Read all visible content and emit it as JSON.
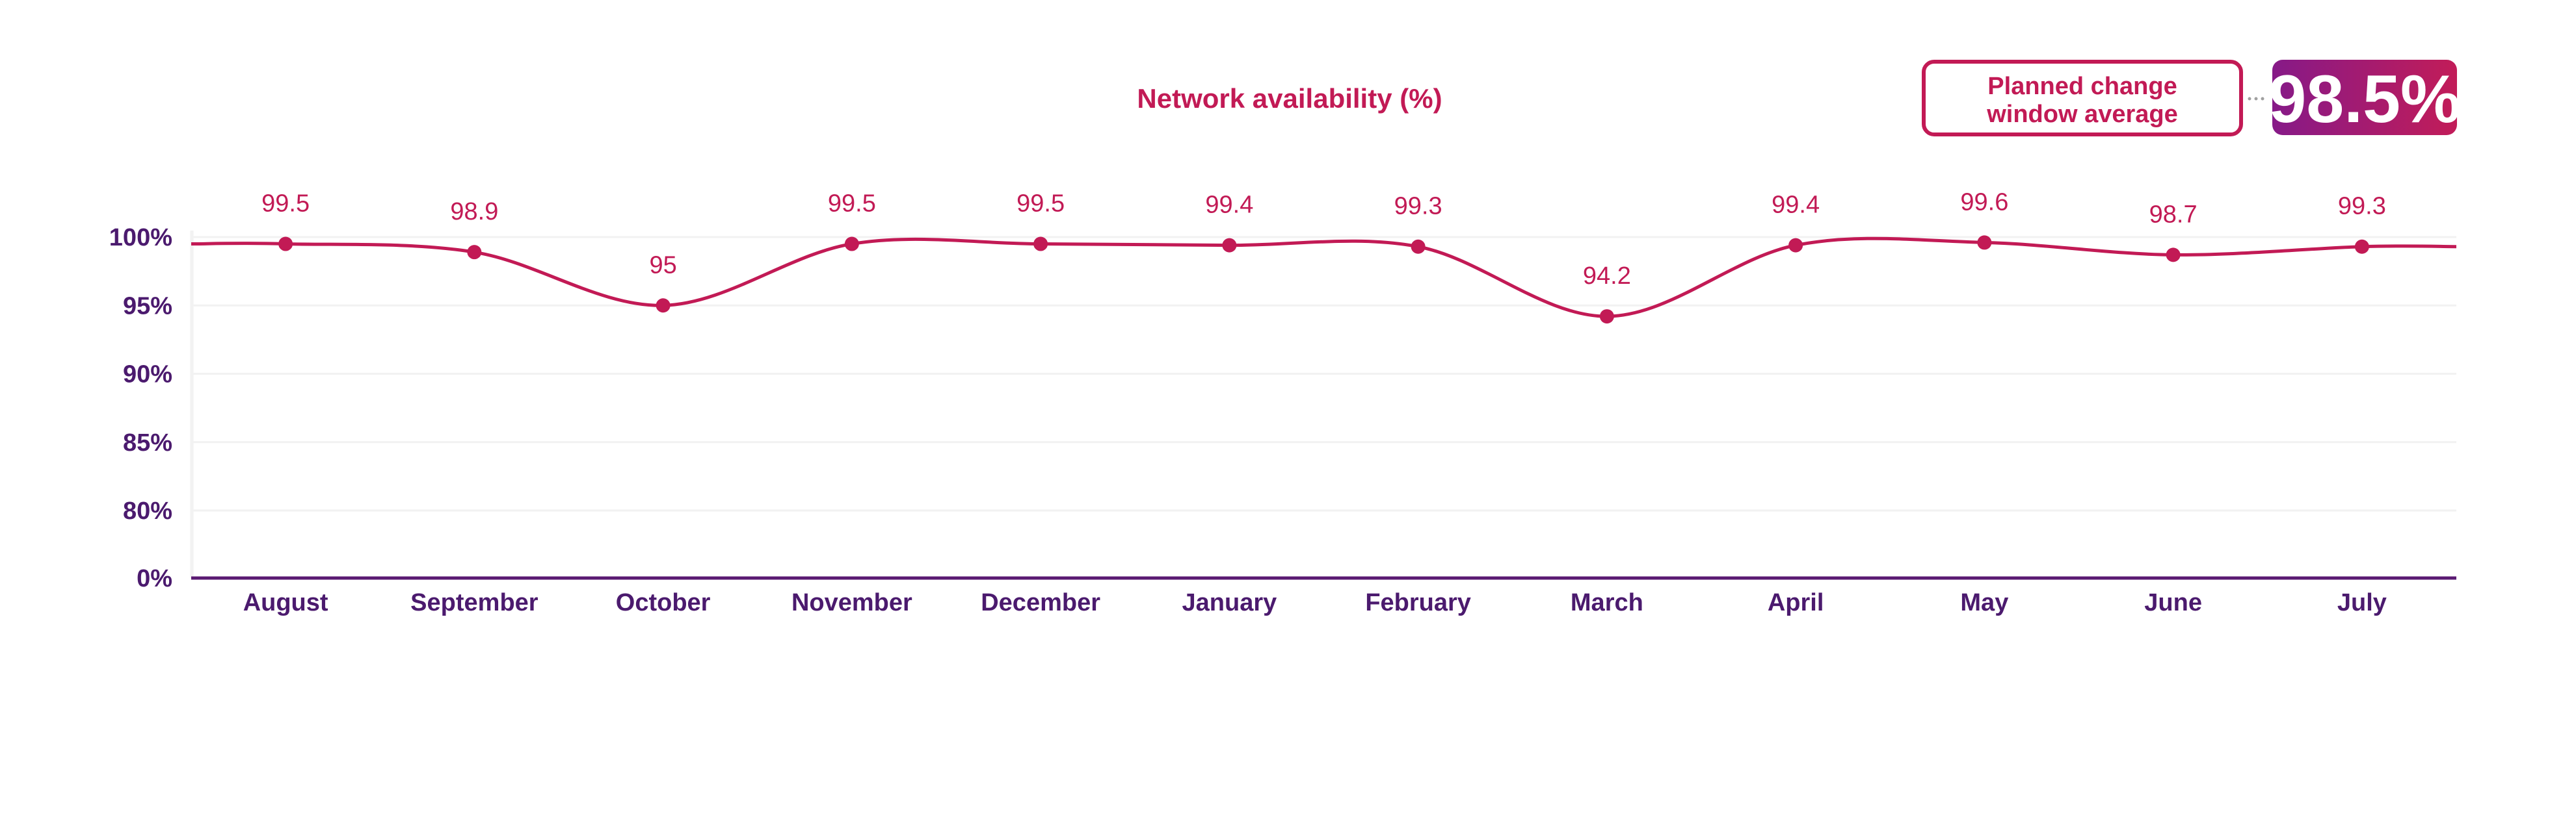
{
  "chart_data": {
    "type": "line",
    "title": "Network availability (%)",
    "categories": [
      "August",
      "September",
      "October",
      "November",
      "December",
      "January",
      "February",
      "March",
      "April",
      "May",
      "June",
      "July"
    ],
    "series": [
      {
        "name": "Network availability",
        "values": [
          99.5,
          98.9,
          95,
          99.5,
          99.5,
          99.4,
          99.3,
          94.2,
          99.4,
          99.6,
          98.7,
          99.3
        ]
      }
    ],
    "data_labels": [
      "99.5",
      "98.9",
      "95",
      "99.5",
      "99.5",
      "99.4",
      "99.3",
      "94.2",
      "99.4",
      "99.6",
      "98.7",
      "99.3"
    ],
    "y_ticks": [
      {
        "value": 0,
        "label": "0%"
      },
      {
        "value": 80,
        "label": "80%"
      },
      {
        "value": 85,
        "label": "85%"
      },
      {
        "value": 90,
        "label": "90%"
      },
      {
        "value": 95,
        "label": "95%"
      },
      {
        "value": 100,
        "label": "100%"
      }
    ],
    "ylim": [
      80,
      100
    ],
    "y_axis_break": "0% baseline below 80%",
    "grid": true,
    "xlabel": "",
    "ylabel": ""
  },
  "summary": {
    "label_line1": "Planned change",
    "label_line2": "window average",
    "value": "98.5%"
  },
  "colors": {
    "line": "#c21a55",
    "axis_text": "#4b1a6e",
    "badge_start": "#861a88",
    "badge_end": "#c21c58",
    "grid": "#f2f2f2"
  }
}
